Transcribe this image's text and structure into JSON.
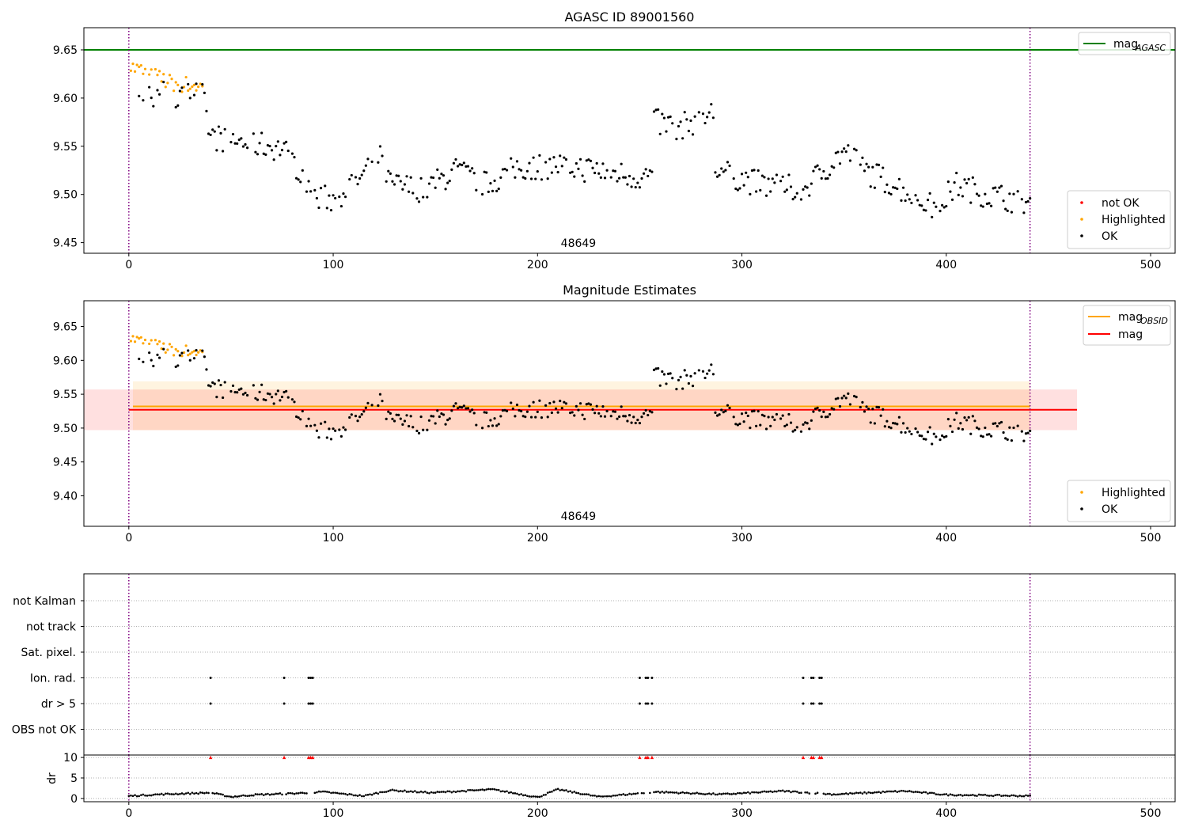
{
  "figure": {
    "background": "#ffffff"
  },
  "colors": {
    "agasc_line": "#008000",
    "obsid_line": "#ffa500",
    "mag_line": "#ff0000",
    "ok": "#000000",
    "highlighted": "#ffa500",
    "not_ok": "#ff0000",
    "boundary": "#800080",
    "band_obsid": "#ffa500",
    "band_mag": "#ff0000",
    "grid": "#b0b0b0"
  },
  "chart_data": [
    {
      "type": "scatter",
      "title": "AGASC ID 89001560",
      "xlabel": "",
      "ylabel": "",
      "xlim": [
        -22,
        512
      ],
      "ylim": [
        9.439,
        9.673
      ],
      "xticks": [
        0,
        100,
        200,
        300,
        400,
        500
      ],
      "yticks": [
        9.45,
        9.5,
        9.55,
        9.6,
        9.65
      ],
      "ytick_labels": [
        "9.45",
        "9.50",
        "9.55",
        "9.60",
        "9.65"
      ],
      "vlines": [
        0,
        441
      ],
      "hlines": [
        {
          "name": "mag_AGASC",
          "y": 9.65
        }
      ],
      "annotations": [
        {
          "text": "48649",
          "x": 220
        }
      ],
      "legend_lines": [
        {
          "label": "mag",
          "sub": "AGASC",
          "color_key": "agasc_line"
        }
      ],
      "legend_points": [
        {
          "label": "not OK",
          "color_key": "not_ok"
        },
        {
          "label": "Highlighted",
          "color_key": "highlighted"
        },
        {
          "label": "OK",
          "color_key": "ok"
        }
      ],
      "series": [
        {
          "name": "Highlighted",
          "color_key": "highlighted",
          "x_range": [
            0,
            36
          ],
          "anchors": [
            [
              0,
              9.633
            ],
            [
              10,
              9.625
            ],
            [
              20,
              9.616
            ],
            [
              36,
              9.612
            ]
          ],
          "noise": 0.009
        },
        {
          "name": "OK",
          "color_key": "ok",
          "x_range": [
            0,
            441
          ],
          "anchors": [
            [
              0,
              9.597
            ],
            [
              15,
              9.605
            ],
            [
              36,
              9.603
            ],
            [
              40,
              9.56
            ],
            [
              60,
              9.553
            ],
            [
              75,
              9.548
            ],
            [
              85,
              9.522
            ],
            [
              90,
              9.5
            ],
            [
              100,
              9.495
            ],
            [
              115,
              9.52
            ],
            [
              122,
              9.545
            ],
            [
              128,
              9.51
            ],
            [
              145,
              9.505
            ],
            [
              160,
              9.525
            ],
            [
              175,
              9.51
            ],
            [
              190,
              9.528
            ],
            [
              210,
              9.53
            ],
            [
              230,
              9.525
            ],
            [
              250,
              9.518
            ],
            [
              256,
              9.52
            ],
            [
              257,
              9.575
            ],
            [
              270,
              9.57
            ],
            [
              286,
              9.585
            ],
            [
              287,
              9.525
            ],
            [
              310,
              9.51
            ],
            [
              330,
              9.505
            ],
            [
              350,
              9.545
            ],
            [
              360,
              9.525
            ],
            [
              375,
              9.51
            ],
            [
              395,
              9.485
            ],
            [
              405,
              9.51
            ],
            [
              420,
              9.5
            ],
            [
              441,
              9.492
            ]
          ],
          "noise": 0.014
        }
      ]
    },
    {
      "type": "scatter",
      "title": "Magnitude Estimates",
      "xlabel": "",
      "ylabel": "",
      "xlim": [
        -22,
        512
      ],
      "ylim": [
        9.355,
        9.688
      ],
      "xticks": [
        0,
        100,
        200,
        300,
        400,
        500
      ],
      "yticks": [
        9.4,
        9.45,
        9.5,
        9.55,
        9.6,
        9.65
      ],
      "ytick_labels": [
        "9.40",
        "9.45",
        "9.50",
        "9.55",
        "9.60",
        "9.65"
      ],
      "vlines": [
        0,
        441
      ],
      "hlines": [
        {
          "name": "mag_OBSID",
          "y": 9.532,
          "x": [
            2,
            441
          ],
          "color_key": "obsid_line"
        },
        {
          "name": "mag",
          "y": 9.527,
          "x": [
            0,
            464
          ],
          "color_key": "mag_line"
        }
      ],
      "bands": [
        {
          "y": [
            9.497,
            9.569
          ],
          "x": [
            2,
            441
          ],
          "color_key": "band_obsid"
        },
        {
          "y": [
            9.497,
            9.557
          ],
          "x": [
            -22,
            464
          ],
          "color_key": "band_mag"
        }
      ],
      "annotations": [
        {
          "text": "48649",
          "x": 220
        }
      ],
      "legend_lines": [
        {
          "label": "mag",
          "sub": "OBSID",
          "color_key": "obsid_line"
        },
        {
          "label": "mag",
          "sub": "",
          "color_key": "mag_line"
        }
      ],
      "legend_points": [
        {
          "label": "Highlighted",
          "color_key": "highlighted"
        },
        {
          "label": "OK",
          "color_key": "ok"
        }
      ],
      "series_ref": "same as AGASC panel"
    },
    {
      "type": "scatter",
      "title": "",
      "xlabel": "",
      "ylabel": "",
      "xlim": [
        -22,
        512
      ],
      "categories": [
        "not Kalman",
        "not track",
        "Sat. pixel.",
        "Ion. rad.",
        "dr > 5",
        "OBS not OK"
      ],
      "flags": {
        "Ion. rad.": [
          40,
          76,
          88,
          89,
          90,
          250,
          253,
          254,
          256,
          330,
          334,
          335,
          338,
          339
        ],
        "dr > 5": [
          40,
          76,
          88,
          89,
          90,
          250,
          253,
          254,
          256,
          330,
          334,
          335,
          338,
          339
        ]
      },
      "vlines": [
        0,
        441
      ]
    },
    {
      "type": "scatter",
      "title": "",
      "xlabel": "",
      "ylabel": "dr",
      "xlim": [
        -22,
        512
      ],
      "ylim": [
        -0.8,
        10.6
      ],
      "xticks": [
        0,
        100,
        200,
        300,
        400,
        500
      ],
      "yticks": [
        0,
        5,
        10
      ],
      "clipped_at": 10,
      "clipped_x": [
        40,
        76,
        88,
        89,
        90,
        250,
        253,
        254,
        256,
        330,
        334,
        335,
        338,
        339
      ],
      "dr_anchors": [
        [
          0,
          0.6
        ],
        [
          15,
          1.0
        ],
        [
          40,
          1.4
        ],
        [
          50,
          0.4
        ],
        [
          62,
          0.9
        ],
        [
          80,
          1.2
        ],
        [
          95,
          1.6
        ],
        [
          115,
          0.6
        ],
        [
          128,
          2.0
        ],
        [
          148,
          1.4
        ],
        [
          178,
          2.2
        ],
        [
          200,
          0.3
        ],
        [
          210,
          2.2
        ],
        [
          230,
          0.4
        ],
        [
          258,
          1.6
        ],
        [
          290,
          1.0
        ],
        [
          320,
          1.8
        ],
        [
          345,
          1.0
        ],
        [
          380,
          1.8
        ],
        [
          400,
          0.9
        ],
        [
          441,
          0.6
        ]
      ],
      "vlines": [
        0,
        441
      ]
    }
  ]
}
